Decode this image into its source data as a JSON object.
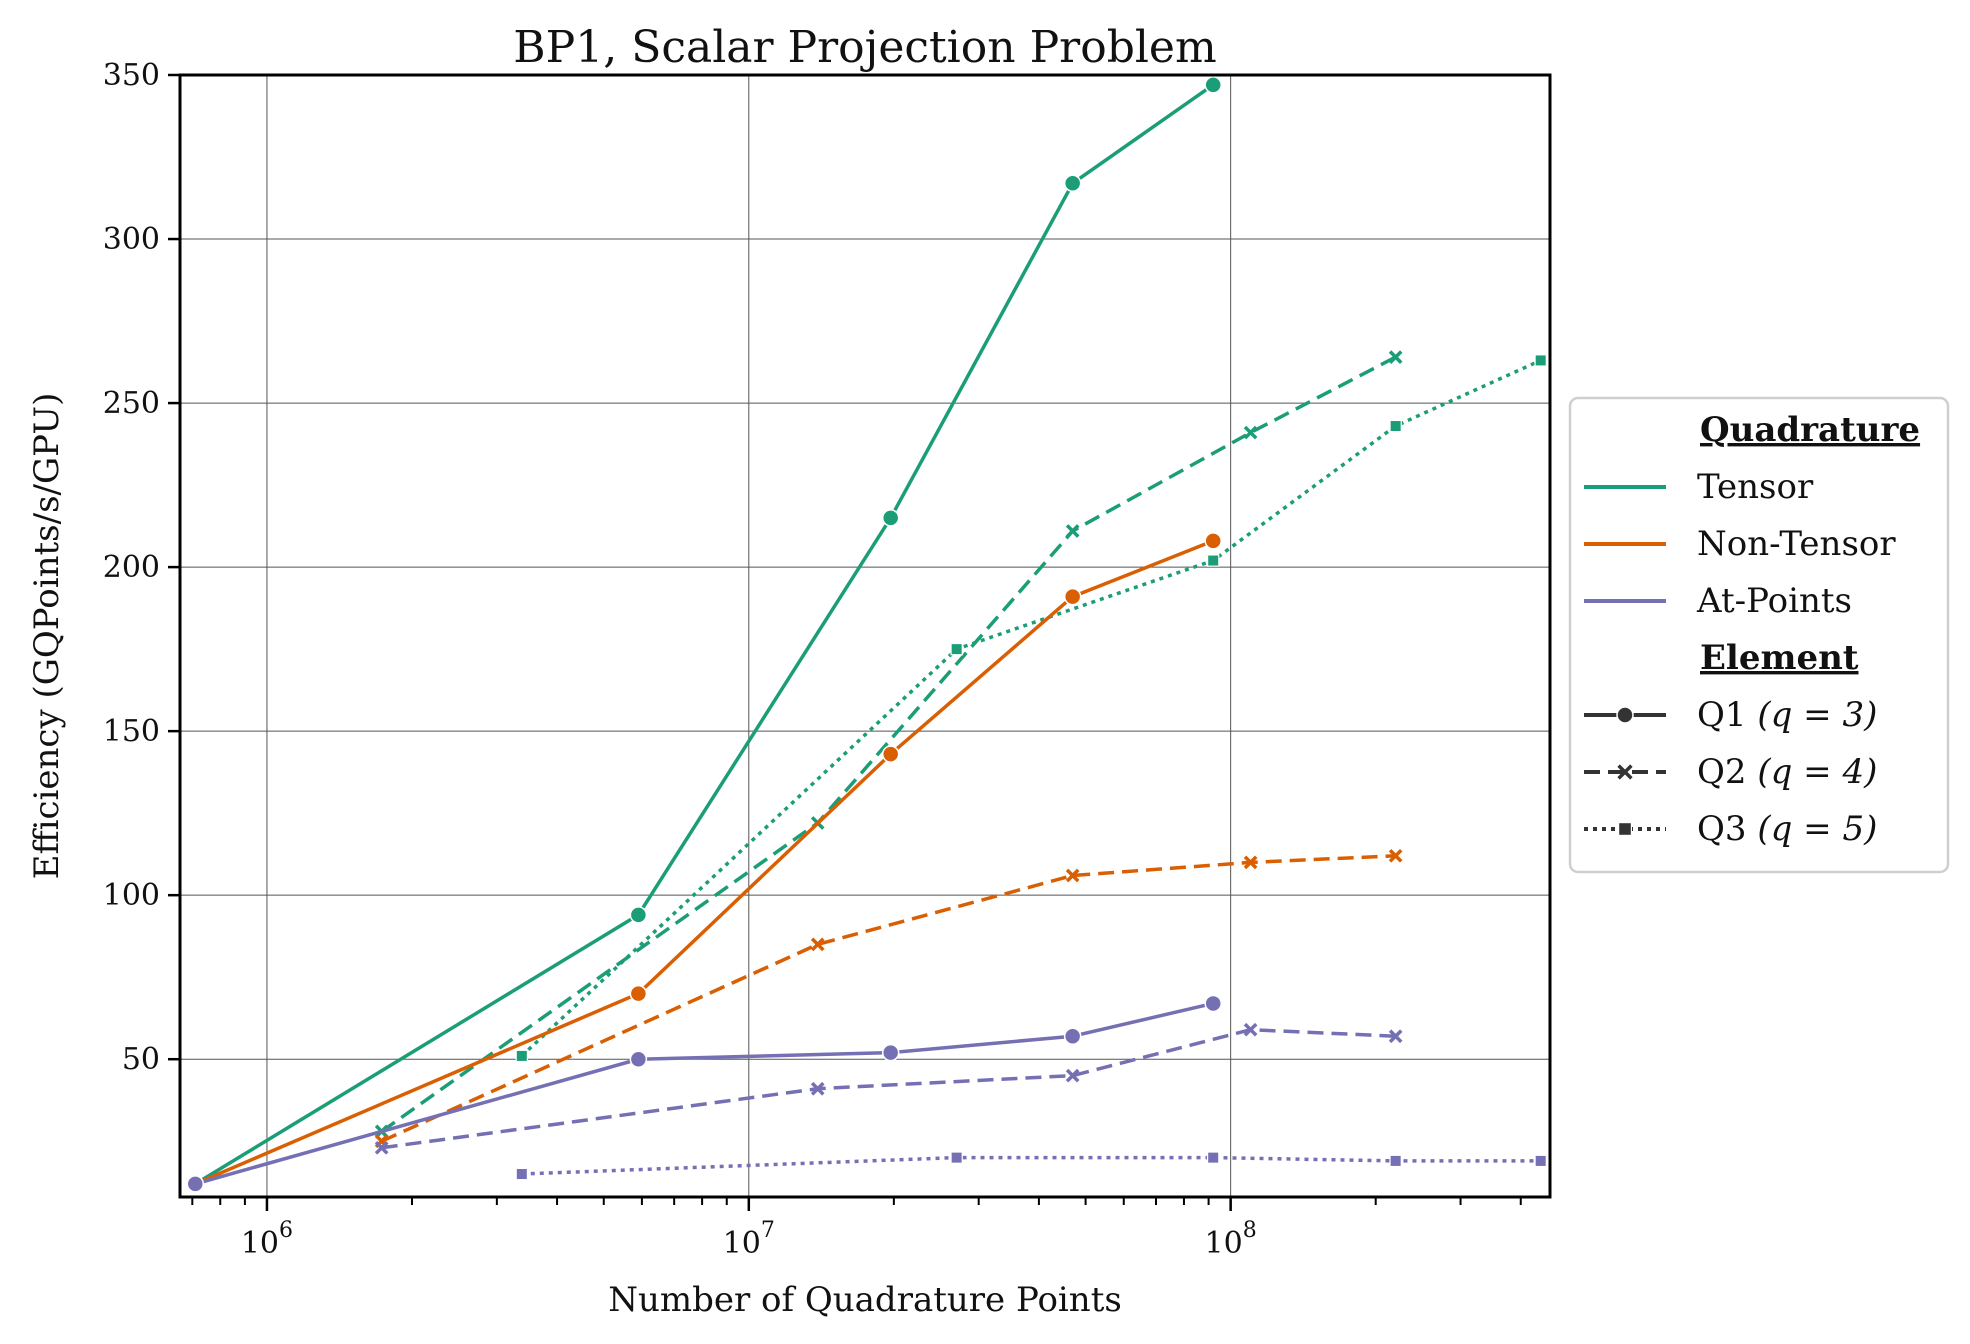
{
  "chart_data": {
    "type": "line",
    "title": "BP1, Scalar Projection Problem",
    "xlabel": "Number of Quadrature Points",
    "ylabel": "Efficiency (GQPoints/s/GPU)",
    "xscale": "log",
    "xlim": [
      660000,
      460000000
    ],
    "ylim": [
      8,
      350
    ],
    "yticks": [
      50,
      100,
      150,
      200,
      250,
      300,
      350
    ],
    "xticks": [
      1000000,
      10000000,
      100000000
    ],
    "xtick_labels": [
      "10^6",
      "10^7",
      "10^8"
    ],
    "grid": true,
    "legend": {
      "placement": "right-outside",
      "quadrature_title": "Quadrature",
      "element_title": "Element",
      "quadrature": [
        {
          "name": "Tensor",
          "color": "#1b9e77"
        },
        {
          "name": "Non-Tensor",
          "color": "#d95f02"
        },
        {
          "name": "At-Points",
          "color": "#7570b3"
        }
      ],
      "element": [
        {
          "name": "Q1",
          "q_text": "(q = 3)",
          "style": "solid",
          "marker": "circle"
        },
        {
          "name": "Q2",
          "q_text": "(q = 4)",
          "style": "dashed",
          "marker": "x"
        },
        {
          "name": "Q3",
          "q_text": "(q = 5)",
          "style": "dotted",
          "marker": "square"
        }
      ]
    },
    "series": [
      {
        "quadrature": "Tensor",
        "element": "Q1",
        "color": "#1b9e77",
        "style": "solid",
        "marker": "circle",
        "x": [
          710000,
          5900000,
          19700000,
          47000000,
          92000000
        ],
        "y": [
          12,
          94,
          215,
          317,
          347
        ]
      },
      {
        "quadrature": "Tensor",
        "element": "Q2",
        "color": "#1b9e77",
        "style": "dashed",
        "marker": "x",
        "x": [
          1730000,
          13900000,
          47000000,
          110000000,
          220000000
        ],
        "y": [
          28,
          122,
          211,
          241,
          264
        ]
      },
      {
        "quadrature": "Tensor",
        "element": "Q3",
        "color": "#1b9e77",
        "style": "dotted",
        "marker": "square",
        "x": [
          3380000,
          27000000,
          92000000,
          220000000,
          440000000
        ],
        "y": [
          51,
          175,
          202,
          243,
          263
        ]
      },
      {
        "quadrature": "Non-Tensor",
        "element": "Q1",
        "color": "#d95f02",
        "style": "solid",
        "marker": "circle",
        "x": [
          710000,
          5900000,
          19700000,
          47000000,
          92000000
        ],
        "y": [
          12,
          70,
          143,
          191,
          208
        ]
      },
      {
        "quadrature": "Non-Tensor",
        "element": "Q2",
        "color": "#d95f02",
        "style": "dashed",
        "marker": "x",
        "x": [
          1730000,
          13900000,
          47000000,
          110000000,
          220000000
        ],
        "y": [
          25,
          85,
          106,
          110,
          112
        ]
      },
      {
        "quadrature": "At-Points",
        "element": "Q1",
        "color": "#7570b3",
        "style": "solid",
        "marker": "circle",
        "x": [
          710000,
          5900000,
          19700000,
          47000000,
          92000000
        ],
        "y": [
          12,
          50,
          52,
          57,
          67
        ]
      },
      {
        "quadrature": "At-Points",
        "element": "Q2",
        "color": "#7570b3",
        "style": "dashed",
        "marker": "x",
        "x": [
          1730000,
          13900000,
          47000000,
          110000000,
          220000000
        ],
        "y": [
          23,
          41,
          45,
          59,
          57
        ]
      },
      {
        "quadrature": "At-Points",
        "element": "Q3",
        "color": "#7570b3",
        "style": "dotted",
        "marker": "square",
        "x": [
          3380000,
          27000000,
          92000000,
          220000000,
          440000000
        ],
        "y": [
          15,
          20,
          20,
          19,
          19
        ]
      }
    ]
  }
}
